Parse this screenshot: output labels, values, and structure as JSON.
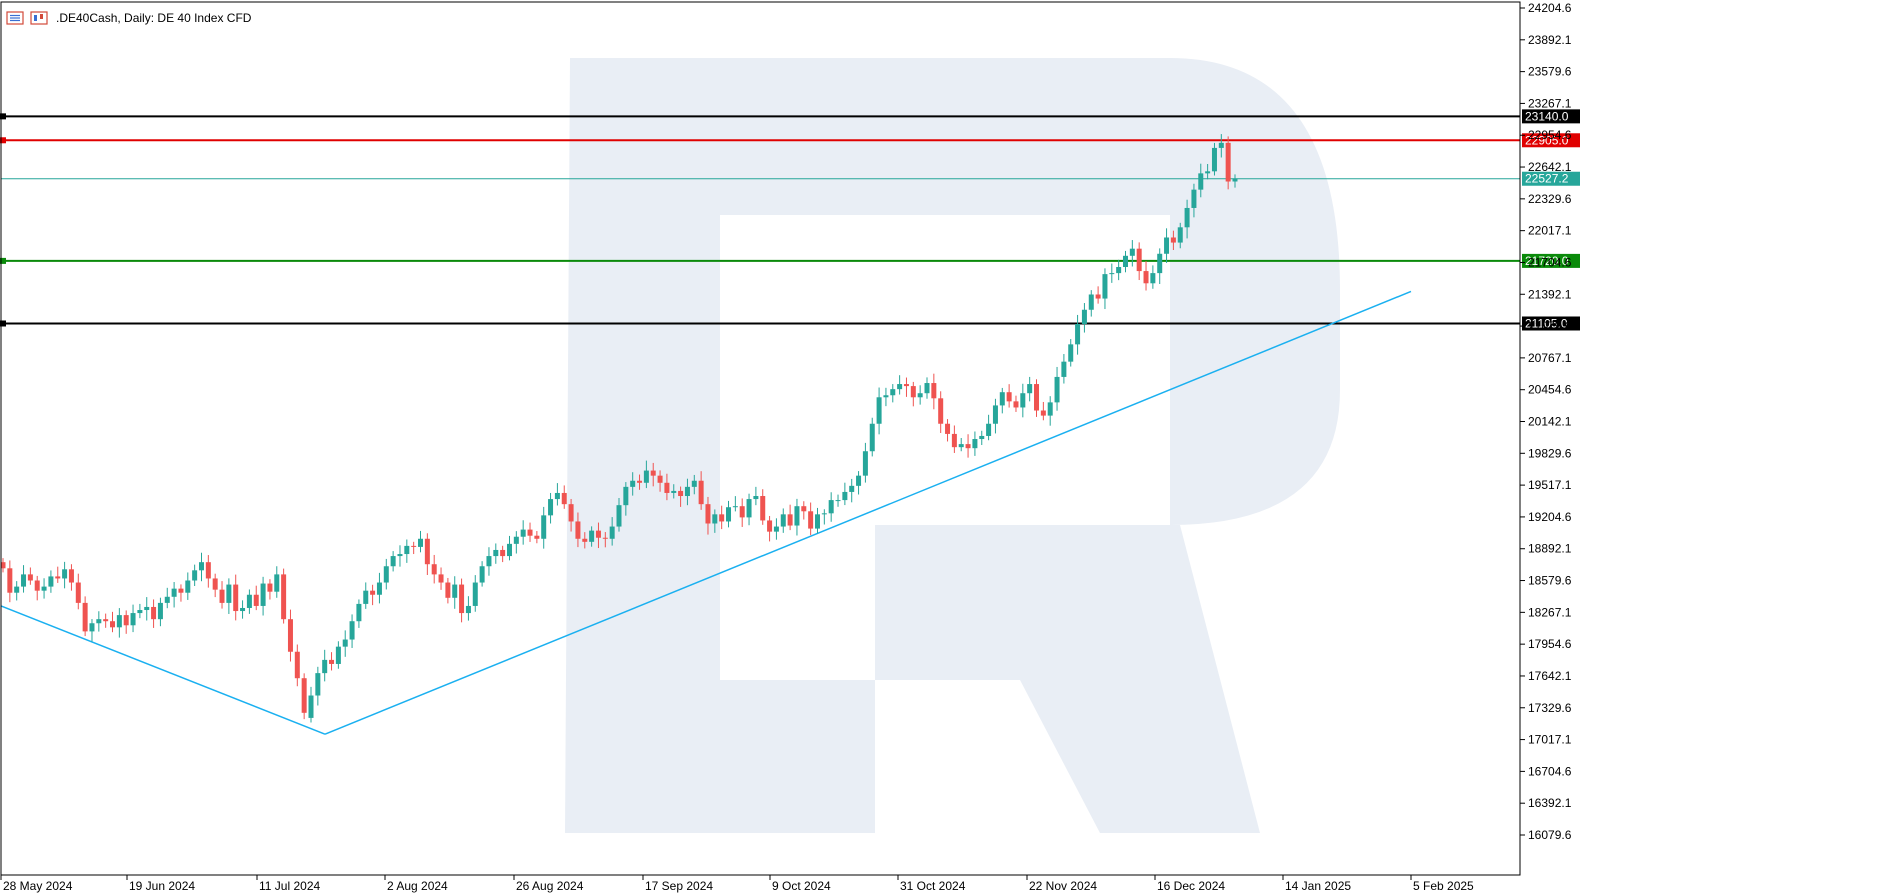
{
  "header": {
    "symbol": ".DE40Cash",
    "timeframe": "Daily:",
    "description": "DE 40 Index CFD",
    "icons": [
      "chart-bars-icon",
      "candles-icon"
    ]
  },
  "chart_data": {
    "type": "candlestick",
    "ylim": [
      15850,
      24300
    ],
    "y_ticks": [
      "24204.6",
      "23892.1",
      "23579.6",
      "23267.1",
      "22954.6",
      "22642.1",
      "22329.6",
      "22017.1",
      "21704.6",
      "21392.1",
      "21079.6",
      "20767.1",
      "20454.6",
      "20142.1",
      "19829.6",
      "19517.1",
      "19204.6",
      "18892.1",
      "18579.6",
      "18267.1",
      "17954.6",
      "17642.1",
      "17329.6",
      "17017.1",
      "16704.6",
      "16392.1",
      "16079.6"
    ],
    "x_labels": [
      "28 May 2024",
      "19 Jun 2024",
      "11 Jul 2024",
      "2 Aug 2024",
      "26 Aug 2024",
      "17 Sep 2024",
      "9 Oct 2024",
      "31 Oct 2024",
      "22 Nov 2024",
      "16 Dec 2024",
      "14 Jan 2025",
      "5 Feb 2025"
    ],
    "horizontal_levels": [
      {
        "value": 23140.0,
        "label": "23140.0",
        "color": "#000000"
      },
      {
        "value": 22905.0,
        "label": "22905.0",
        "color": "#e00000"
      },
      {
        "value": 22527.2,
        "label": "22527.2",
        "color": "#26a69a"
      },
      {
        "value": 21720.0,
        "label": "21720.0",
        "color": "#0a8a0a"
      },
      {
        "value": 21105.0,
        "label": "21105.0",
        "color": "#000000"
      }
    ],
    "trendline": {
      "color": "#1ab0f0",
      "points": [
        [
          "28 May 2024",
          18330
        ],
        [
          "2 Aug 2024",
          17070
        ],
        [
          "after 5 Feb 2025",
          21420
        ]
      ]
    },
    "colors": {
      "up": "#26a69a",
      "down": "#ef5350"
    },
    "closes": [
      18700,
      18460,
      18520,
      18640,
      18580,
      18480,
      18520,
      18620,
      18600,
      18690,
      18560,
      18360,
      18080,
      18160,
      18200,
      18180,
      18120,
      18240,
      18140,
      18260,
      18290,
      18320,
      18200,
      18360,
      18420,
      18500,
      18460,
      18580,
      18680,
      18760,
      18600,
      18490,
      18360,
      18540,
      18280,
      18310,
      18440,
      18330,
      18550,
      18470,
      18640,
      18200,
      17880,
      17620,
      17280,
      17450,
      17670,
      17800,
      17760,
      17930,
      18000,
      18180,
      18350,
      18480,
      18440,
      18560,
      18720,
      18820,
      18840,
      18920,
      18910,
      18990,
      18740,
      18640,
      18560,
      18410,
      18540,
      18260,
      18330,
      18560,
      18720,
      18820,
      18880,
      18820,
      18940,
      19010,
      19080,
      19020,
      18990,
      19220,
      19380,
      19440,
      19330,
      19160,
      18990,
      18960,
      19070,
      19000,
      18990,
      19110,
      19320,
      19500,
      19560,
      19540,
      19660,
      19610,
      19540,
      19440,
      19460,
      19410,
      19500,
      19560,
      19330,
      19140,
      19230,
      19160,
      19300,
      19310,
      19200,
      19380,
      19410,
      19170,
      19060,
      19110,
      19230,
      19120,
      19310,
      19260,
      19090,
      19230,
      19240,
      19370,
      19370,
      19450,
      19510,
      19610,
      19850,
      20120,
      20380,
      20400,
      20460,
      20510,
      20490,
      20380,
      20420,
      20520,
      20370,
      20120,
      20020,
      19890,
      19920,
      19880,
      19970,
      20000,
      20120,
      20300,
      20430,
      20340,
      20280,
      20420,
      20510,
      20250,
      20200,
      20330,
      20580,
      20730,
      20900,
      21100,
      21240,
      21390,
      21350,
      21590,
      21600,
      21660,
      21770,
      21840,
      21620,
      21500,
      21600,
      21790,
      21950,
      21900,
      22050,
      22240,
      22420,
      22580,
      22600,
      22830,
      22880,
      22500,
      22530
    ]
  }
}
